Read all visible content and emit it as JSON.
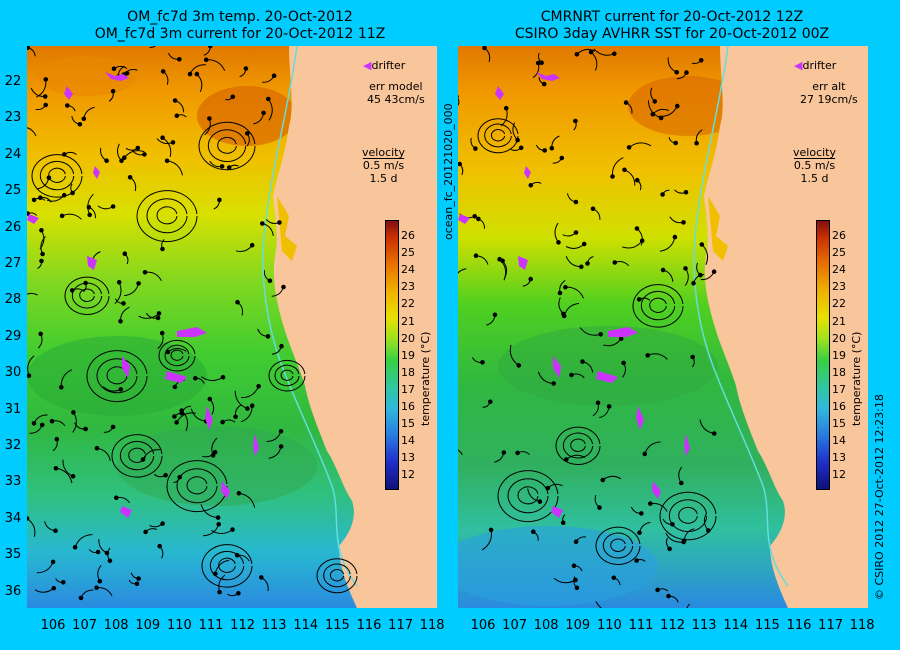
{
  "left": {
    "title_line1": "OM_fc7d 3m temp. 20-Oct-2012",
    "title_line2": "OM_fc7d 3m current for 20-Oct-2012 11Z",
    "drifter_label": "drifter",
    "err_label": "err model",
    "err_value": "45 43cm/s",
    "velocity_label": "velocity",
    "velocity_scale": "0.5 m/s",
    "velocity_days": "1.5 d",
    "cbar_label": "temperature (°C)"
  },
  "right": {
    "title_line1": "CMRNRT current for 20-Oct-2012 12Z",
    "title_line2": "CSIRO 3day AVHRR SST for 20-Oct-2012 00Z",
    "drifter_label": "drifter",
    "err_label": "err alt",
    "err_value": "27 19cm/s",
    "velocity_label": "velocity",
    "velocity_scale": "0.5 m/s",
    "velocity_days": "1.5 d",
    "cbar_label": "temperature (°C)"
  },
  "middle_vertical_label": "ocean_fc_20121020_000",
  "right_vertical_label": "© CSIRO 2012   27-Oct-2012 12:23:18",
  "y_ticks": [
    "22",
    "23",
    "24",
    "25",
    "26",
    "27",
    "28",
    "29",
    "30",
    "31",
    "32",
    "33",
    "34",
    "35",
    "36"
  ],
  "x_ticks": [
    "106",
    "107",
    "108",
    "109",
    "110",
    "111",
    "112",
    "113",
    "114",
    "115",
    "116",
    "117",
    "118"
  ],
  "cbar_ticks": [
    "26",
    "25",
    "24",
    "23",
    "22",
    "21",
    "20",
    "19",
    "18",
    "17",
    "16",
    "15",
    "14",
    "13",
    "12"
  ],
  "colors": {
    "background": "#00ccff",
    "land": "#f9c59a",
    "drifter": "#cc33ff",
    "coast_current": "#66dddd"
  }
}
